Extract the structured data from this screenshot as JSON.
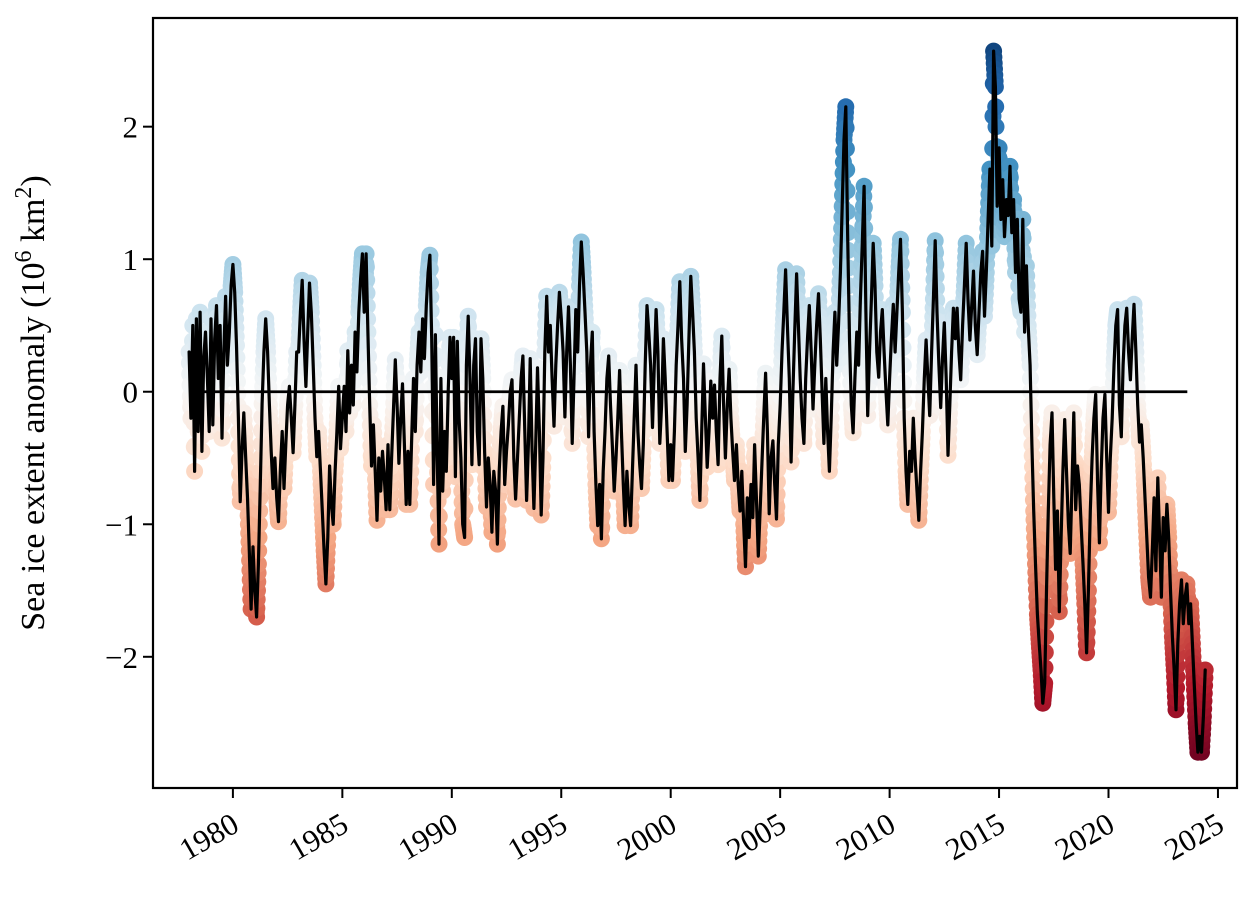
{
  "page": {
    "background": "#ffffff"
  },
  "chart_data": {
    "type": "line",
    "title": "",
    "xlabel": "",
    "ylabel": "Sea ice extent anomaly (10^6 km^2)",
    "ylabel_parts": {
      "main": "Sea ice extent anomaly (10",
      "exp1": "6",
      "mid": " km",
      "exp2": "2",
      "close": ")"
    },
    "x": {
      "ticks": [
        1980,
        1985,
        1990,
        1995,
        2000,
        2005,
        2010,
        2015,
        2020,
        2025
      ],
      "lim": [
        1976.35,
        2025.87
      ],
      "tick_rotation_deg": 30
    },
    "y": {
      "ticks": [
        -2,
        -1,
        0,
        1,
        2
      ],
      "lim": [
        -2.99,
        2.82
      ],
      "grid": false
    },
    "legend": null,
    "zero_line": {
      "show": true,
      "x_start": 1978.6,
      "x_end": 2023.6,
      "color": "#000000",
      "width": 2.8
    },
    "series": [
      {
        "name": "sea-ice-extent-anomaly-monthly",
        "start_year": 1978,
        "start_month": 1,
        "frequency": "monthly",
        "values": [
          0.3,
          -0.2,
          0.5,
          -0.6,
          0.55,
          -0.3,
          0.6,
          -0.45,
          0.25,
          0.45,
          0.1,
          -0.3,
          0.55,
          -0.25,
          0.4,
          0.65,
          0.1,
          0.5,
          -0.35,
          0.3,
          0.72,
          0.2,
          0.45,
          0.8,
          0.96,
          0.75,
          0.35,
          -0.2,
          -0.83,
          -0.45,
          -0.16,
          -0.5,
          -0.8,
          -1.2,
          -1.64,
          -1.17,
          -1.5,
          -1.7,
          -1.3,
          -0.7,
          -0.09,
          0.3,
          0.55,
          0.3,
          -0.1,
          -0.45,
          -0.73,
          -0.5,
          -0.8,
          -0.98,
          -0.6,
          -0.3,
          -0.73,
          -0.4,
          -0.1,
          0.04,
          -0.2,
          -0.46,
          -0.1,
          0.3,
          0.3,
          0.6,
          0.84,
          0.4,
          0.04,
          0.45,
          0.82,
          0.6,
          0.2,
          -0.2,
          -0.49,
          -0.3,
          -0.6,
          -0.9,
          -1.2,
          -1.45,
          -1.1,
          -0.56,
          -0.85,
          -1.0,
          -0.6,
          -0.3,
          0.04,
          -0.43,
          -0.2,
          0.04,
          -0.3,
          0.31,
          -0.16,
          0.2,
          -0.1,
          0.45,
          0.15,
          0.6,
          0.85,
          1.04,
          0.6,
          1.04,
          0.45,
          -0.1,
          -0.56,
          -0.25,
          -0.6,
          -0.97,
          -0.5,
          -0.75,
          -0.45,
          -0.65,
          -0.89,
          -0.4,
          -0.89,
          -0.5,
          -0.15,
          0.24,
          -0.1,
          -0.54,
          -0.2,
          0.06,
          -0.4,
          -0.85,
          -0.45,
          -0.85,
          -0.35,
          0.1,
          -0.3,
          0.2,
          0.45,
          0.15,
          0.55,
          0.25,
          0.65,
          0.9,
          1.03,
          0.4,
          -0.7,
          0.43,
          -0.5,
          -1.15,
          0.1,
          -0.75,
          -0.3,
          -0.6,
          0.0,
          0.41,
          0.1,
          0.41,
          -0.64,
          0.38,
          -0.2,
          -0.5,
          -1.0,
          -1.1,
          0.2,
          0.57,
          0.1,
          -0.55,
          0.2,
          0.4,
          -0.3,
          -0.55,
          0.4,
          0.1,
          -0.45,
          -0.87,
          -0.5,
          -0.7,
          -1.06,
          -0.6,
          -0.75,
          -1.15,
          -0.6,
          -0.3,
          -0.11,
          -0.7,
          -0.45,
          -0.25,
          0.0,
          0.09,
          -0.5,
          -0.81,
          -0.5,
          -0.2,
          0.1,
          0.27,
          -0.3,
          -0.82,
          -0.4,
          0.25,
          -0.45,
          -0.88,
          -0.4,
          0.18,
          -0.3,
          -0.93,
          -0.5,
          0.3,
          0.72,
          0.3,
          0.5,
          0.1,
          -0.26,
          0.2,
          0.5,
          0.75,
          0.55,
          0.3,
          -0.19,
          0.3,
          0.64,
          0.2,
          -0.39,
          0.1,
          0.62,
          0.3,
          0.8,
          1.13,
          0.9,
          0.6,
          0.3,
          -0.34,
          0.2,
          0.45,
          -0.3,
          -0.7,
          -1.01,
          -0.7,
          -1.11,
          -0.6,
          -0.3,
          0.1,
          0.27,
          -0.1,
          -0.4,
          -0.75,
          -0.5,
          -0.2,
          0.16,
          -0.3,
          -0.7,
          -1.01,
          -0.6,
          -0.85,
          -1.01,
          -0.6,
          -0.2,
          0.2,
          -0.3,
          -0.55,
          -0.73,
          -0.4,
          0.2,
          0.65,
          0.45,
          0.2,
          -0.27,
          0.2,
          0.62,
          0.3,
          -0.39,
          -0.1,
          0.4,
          0.1,
          -0.3,
          -0.67,
          -0.4,
          -0.67,
          -0.3,
          0.2,
          0.5,
          0.83,
          0.4,
          0.1,
          -0.45,
          -0.1,
          0.4,
          0.87,
          0.6,
          0.3,
          -0.2,
          -0.5,
          -0.82,
          -0.3,
          0.21,
          -0.2,
          -0.57,
          -0.3,
          0.08,
          -0.2,
          0.05,
          -0.3,
          -0.55,
          0.1,
          0.42,
          -0.1,
          -0.5,
          -0.1,
          0.17,
          -0.2,
          -0.45,
          -0.67,
          -0.4,
          -0.7,
          -0.9,
          -0.6,
          -1.0,
          -1.32,
          -0.8,
          -1.1,
          -0.7,
          -0.95,
          -0.4,
          -0.8,
          -1.24,
          -0.9,
          -0.55,
          -0.2,
          0.14,
          -0.3,
          -0.92,
          -0.5,
          -0.37,
          -0.7,
          -0.96,
          -0.4,
          -0.1,
          0.3,
          0.6,
          0.92,
          0.5,
          0.1,
          -0.53,
          0.0,
          0.45,
          0.89,
          0.5,
          0.1,
          -0.2,
          -0.39,
          0.1,
          0.4,
          0.65,
          0.3,
          -0.13,
          0.2,
          0.5,
          0.74,
          0.4,
          0.0,
          -0.39,
          0.1,
          -0.3,
          -0.6,
          -0.2,
          0.3,
          0.6,
          0.2,
          0.5,
          0.9,
          1.4,
          1.9,
          2.15,
          1.2,
          0.4,
          -0.1,
          -0.31,
          0.1,
          0.45,
          0.2,
          0.7,
          1.1,
          1.55,
          0.6,
          -0.18,
          0.3,
          0.7,
          1.12,
          0.8,
          0.3,
          0.11,
          0.45,
          0.62,
          0.3,
          0.0,
          -0.25,
          0.1,
          0.4,
          0.66,
          0.3,
          0.6,
          0.9,
          1.15,
          0.6,
          -0.2,
          -0.6,
          -0.85,
          -0.45,
          -0.6,
          -0.2,
          -0.5,
          -0.75,
          -0.97,
          -0.6,
          -0.3,
          0.1,
          0.39,
          0.1,
          -0.18,
          0.3,
          0.7,
          1.14,
          0.6,
          0.2,
          -0.12,
          0.25,
          0.52,
          0.1,
          -0.48,
          -0.1,
          0.3,
          0.63,
          0.4,
          0.63,
          0.3,
          0.09,
          0.5,
          0.8,
          1.12,
          0.7,
          0.39,
          0.65,
          0.91,
          0.5,
          0.28,
          0.6,
          0.9,
          1.06,
          0.57,
          0.9,
          1.3,
          1.68,
          1.1,
          2.57,
          2.3,
          1.4,
          1.84,
          1.3,
          1.6,
          1.17,
          1.45,
          1.33,
          1.7,
          1.2,
          1.45,
          0.9,
          1.3,
          0.7,
          0.6,
          1.3,
          0.45,
          0.95,
          0.5,
          0.2,
          -0.4,
          -0.9,
          -1.3,
          -1.68,
          -1.9,
          -2.1,
          -2.35,
          -2.2,
          -1.5,
          -0.9,
          -0.4,
          -0.16,
          -0.8,
          -1.34,
          -0.9,
          -1.66,
          -1.1,
          -0.6,
          -0.21,
          -0.6,
          -1.0,
          -1.22,
          -0.7,
          -0.16,
          -0.89,
          -0.56,
          -0.7,
          -1.0,
          -1.3,
          -1.6,
          -1.97,
          -1.5,
          -0.9,
          -0.5,
          -0.2,
          -0.02,
          -0.7,
          -1.14,
          -0.6,
          -0.2,
          -0.02,
          -0.5,
          -0.91,
          -0.5,
          -0.2,
          0.2,
          0.5,
          0.62,
          -0.1,
          -0.34,
          0.2,
          0.5,
          0.63,
          0.3,
          0.09,
          0.4,
          0.66,
          0.3,
          -0.1,
          -0.38,
          -0.25,
          -0.5,
          -0.8,
          -1.1,
          -1.4,
          -1.55,
          -1.2,
          -0.8,
          -1.35,
          -0.65,
          -1.1,
          -1.55,
          -0.95,
          -1.2,
          -0.85,
          -1.1,
          -1.5,
          -1.85,
          -2.1,
          -2.4,
          -1.9,
          -1.6,
          -1.42,
          -1.75,
          -1.55,
          -1.45,
          -1.75,
          -1.6,
          -1.9,
          -2.2,
          -2.5,
          -2.72,
          -2.6,
          -2.72,
          -2.45,
          -2.1
        ]
      }
    ],
    "style": {
      "line_color": "#000000",
      "line_width": 3.2,
      "marker_radius": 8.5,
      "marker_interp_substeps": 6,
      "colormap": "RdBu",
      "color_domain": [
        -2.8,
        2.8
      ],
      "colormap_stops": [
        "#67001f",
        "#b2182b",
        "#d6604d",
        "#f4a582",
        "#fddbc7",
        "#f7f7f7",
        "#d1e5f0",
        "#92c5de",
        "#4393c3",
        "#2166ac",
        "#053061"
      ],
      "spine_color": "#000000",
      "spine_width": 2.2,
      "tick_length": 9,
      "tick_width": 2
    }
  }
}
